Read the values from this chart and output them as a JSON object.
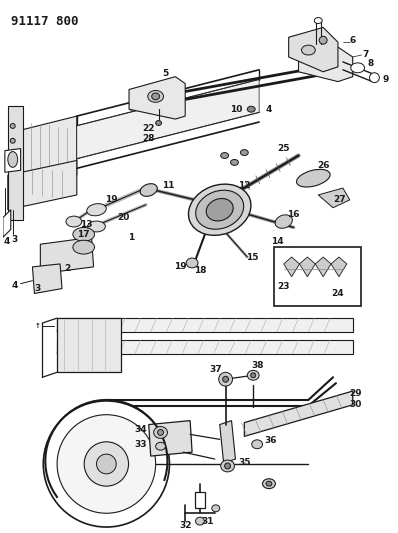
{
  "title": "91117 800",
  "bg_color": "#ffffff",
  "line_color": "#1a1a1a",
  "title_fontsize": 9,
  "label_fontsize": 6.5,
  "figsize": [
    3.98,
    5.33
  ],
  "dpi": 100
}
